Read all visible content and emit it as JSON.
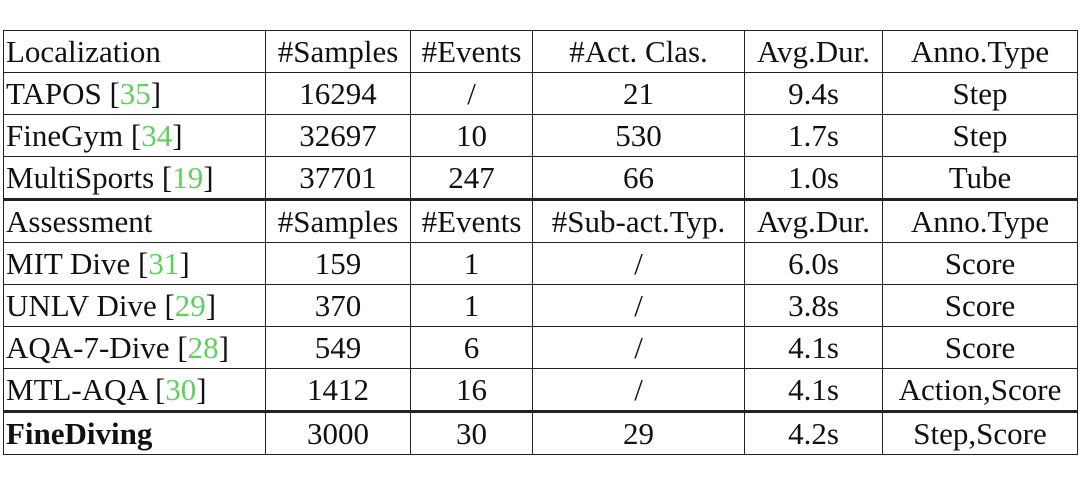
{
  "sections": [
    {
      "header": [
        "Localization",
        "#Samples",
        "#Events",
        "#Act. Clas.",
        "Avg.Dur.",
        "Anno.Type"
      ],
      "rows": [
        {
          "name": {
            "text": "TAPOS [",
            "cite": "35",
            "end": "]"
          },
          "cells": [
            16294,
            "/",
            21,
            "9.4s",
            "Step"
          ]
        },
        {
          "name": {
            "text": "FineGym [",
            "cite": "34",
            "end": "]"
          },
          "cells": [
            32697,
            10,
            530,
            "1.7s",
            "Step"
          ]
        },
        {
          "name": {
            "text": "MultiSports [",
            "cite": "19",
            "end": "]"
          },
          "cells": [
            37701,
            247,
            66,
            "1.0s",
            "Tube"
          ]
        }
      ]
    },
    {
      "header": [
        "Assessment",
        "#Samples",
        "#Events",
        "#Sub-act.Typ.",
        "Avg.Dur.",
        "Anno.Type"
      ],
      "rows": [
        {
          "name": {
            "text": "MIT Dive [",
            "cite": "31",
            "end": "]"
          },
          "cells": [
            159,
            1,
            "/",
            "6.0s",
            "Score"
          ]
        },
        {
          "name": {
            "text": "UNLV Dive [",
            "cite": "29",
            "end": "]"
          },
          "cells": [
            370,
            1,
            "/",
            "3.8s",
            "Score"
          ]
        },
        {
          "name": {
            "text": "AQA-7-Dive [",
            "cite": "28",
            "end": "]"
          },
          "cells": [
            549,
            6,
            "/",
            "4.1s",
            "Score"
          ]
        },
        {
          "name": {
            "text": "MTL-AQA [",
            "cite": "30",
            "end": "]"
          },
          "cells": [
            1412,
            16,
            "/",
            "4.1s",
            "Action,Score"
          ]
        }
      ]
    }
  ],
  "final_row": {
    "name": "FineDiving",
    "cells": [
      3000,
      30,
      29,
      "4.2s",
      "Step,Score"
    ]
  }
}
